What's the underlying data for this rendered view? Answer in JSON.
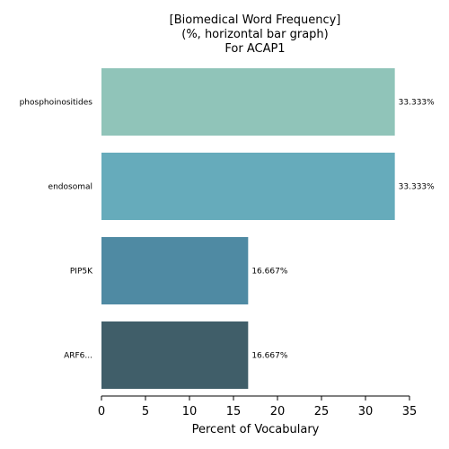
{
  "chart_data": {
    "type": "bar",
    "orientation": "horizontal",
    "title_lines": [
      "[Biomedical Word Frequency]",
      "(%, horizontal bar graph)",
      "For ACAP1"
    ],
    "xlabel": "Percent of Vocabulary",
    "ylabel": "",
    "xlim": [
      0,
      35
    ],
    "xticks": [
      0,
      5,
      10,
      15,
      20,
      25,
      30,
      35
    ],
    "grid": false,
    "categories": [
      "phosphoinositides",
      "endosomal",
      "PIP5K",
      "ARF6..."
    ],
    "values": [
      33.333,
      33.333,
      16.667,
      16.667
    ],
    "data_labels": [
      "33.333%",
      "33.333%",
      "16.667%",
      "16.667%"
    ],
    "colors": [
      "#90c4b9",
      "#66abbb",
      "#4f8aa3",
      "#405e69"
    ]
  }
}
